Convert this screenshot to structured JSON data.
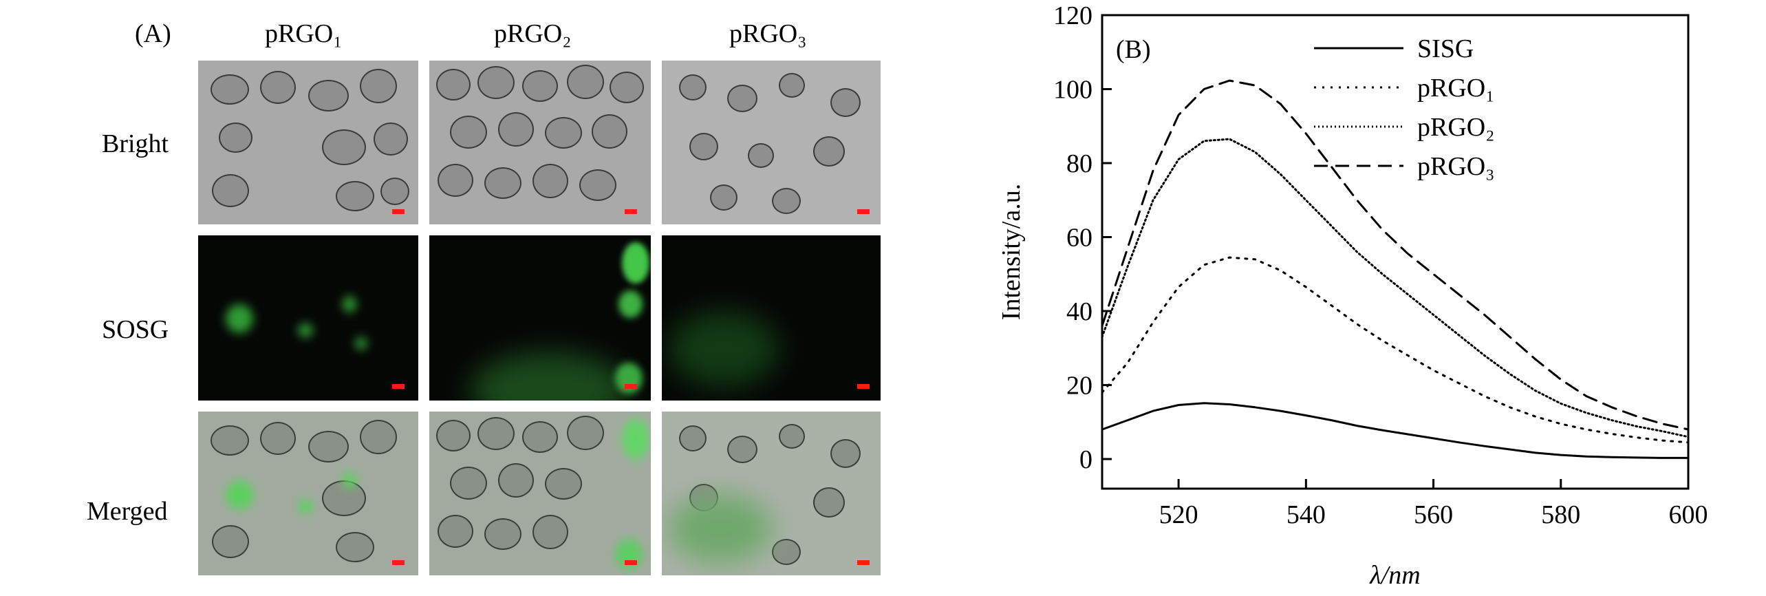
{
  "panel_a": {
    "label": "(A)",
    "columns": [
      "pRGO₁",
      "pRGO₂",
      "pRGO₃"
    ],
    "rows": [
      "Bright",
      "SOSG",
      "Merged"
    ]
  },
  "chart_data": {
    "type": "line",
    "panel_label": "(B)",
    "xlabel": "λ/nm",
    "ylabel": "Intensity/a.u.",
    "xlim": [
      508,
      600
    ],
    "ylim": [
      -8,
      120
    ],
    "xticks": [
      520,
      540,
      560,
      580,
      600
    ],
    "yticks": [
      0,
      20,
      40,
      60,
      80,
      100,
      120
    ],
    "grid": false,
    "legend_position": "top-right",
    "x": [
      508,
      512,
      516,
      520,
      524,
      528,
      532,
      536,
      540,
      544,
      548,
      552,
      556,
      560,
      564,
      568,
      572,
      576,
      580,
      584,
      588,
      592,
      596,
      600
    ],
    "series": [
      {
        "name": "SISG",
        "style": "solid",
        "values": [
          8,
          10.5,
          13,
          14.6,
          15.1,
          14.8,
          14,
          13,
          11.8,
          10.5,
          9,
          7.8,
          6.7,
          5.6,
          4.5,
          3.5,
          2.6,
          1.7,
          1.1,
          0.7,
          0.5,
          0.4,
          0.3,
          0.3
        ]
      },
      {
        "name": "pRGO₁",
        "style": "dotted",
        "values": [
          18,
          26,
          37,
          46.5,
          52.5,
          54.5,
          54,
          51,
          46.5,
          41.5,
          36.5,
          32,
          28,
          24,
          20.5,
          17,
          14,
          11.5,
          9.5,
          8,
          6.8,
          5.8,
          5,
          4.5
        ]
      },
      {
        "name": "pRGO₂",
        "style": "dense-dotted",
        "values": [
          33,
          52,
          70,
          81,
          86,
          86.5,
          83,
          77,
          70,
          63,
          56,
          50,
          44.5,
          39,
          33.5,
          28,
          23,
          18.5,
          15,
          12.5,
          10.5,
          8.8,
          7.5,
          6
        ]
      },
      {
        "name": "pRGO₃",
        "style": "dashed",
        "values": [
          36,
          57,
          78,
          93,
          100,
          102.3,
          101,
          96,
          88,
          79,
          70,
          62,
          55.5,
          50,
          44.5,
          39,
          33,
          27,
          21.5,
          17,
          14,
          11.5,
          9.5,
          8
        ]
      }
    ],
    "colors": {
      "line": "#000000"
    }
  }
}
